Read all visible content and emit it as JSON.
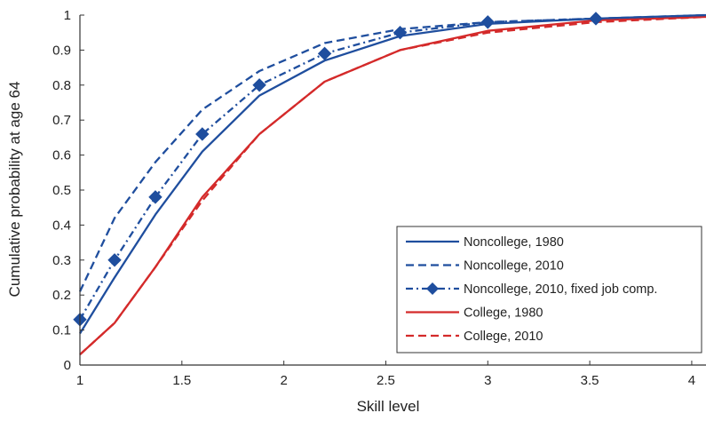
{
  "chart_data": {
    "type": "line",
    "title": "",
    "xlabel": "Skill level",
    "ylabel": "Cumulative probability at age 64",
    "xlim": [
      1,
      4.07
    ],
    "ylim": [
      0,
      1
    ],
    "xticks": [
      1,
      1.5,
      2,
      2.5,
      3,
      3.5,
      4
    ],
    "xtick_labels": [
      "1",
      "1.5",
      "2",
      "2.5",
      "3",
      "3.5",
      "4"
    ],
    "yticks": [
      0,
      0.1,
      0.2,
      0.3,
      0.4,
      0.5,
      0.6,
      0.7,
      0.8,
      0.9,
      1
    ],
    "ytick_labels": [
      "0",
      "0.1",
      "0.2",
      "0.3",
      "0.4",
      "0.5",
      "0.6",
      "0.7",
      "0.8",
      "0.9",
      "1"
    ],
    "grid": false,
    "legend_position": "bottom-right",
    "series": [
      {
        "name": "Noncollege, 1980",
        "color": "#1f4e9e",
        "dash": "solid",
        "marker": "none",
        "x": [
          1,
          1.17,
          1.37,
          1.6,
          1.88,
          2.2,
          2.57,
          3,
          3.53,
          4.07
        ],
        "y": [
          0.09,
          0.25,
          0.43,
          0.61,
          0.77,
          0.87,
          0.94,
          0.975,
          0.99,
          1.0
        ]
      },
      {
        "name": "Noncollege, 2010",
        "color": "#1f4e9e",
        "dash": "dashed",
        "marker": "none",
        "x": [
          1,
          1.17,
          1.37,
          1.6,
          1.88,
          2.2,
          2.57,
          3,
          3.53,
          4.07
        ],
        "y": [
          0.21,
          0.42,
          0.58,
          0.73,
          0.84,
          0.92,
          0.96,
          0.98,
          0.99,
          1.0
        ]
      },
      {
        "name": "Noncollege, 2010, fixed job comp.",
        "color": "#1f4e9e",
        "dash": "dashdot",
        "marker": "diamond",
        "x": [
          1,
          1.17,
          1.37,
          1.6,
          1.88,
          2.2,
          2.57,
          3,
          3.53
        ],
        "y": [
          0.13,
          0.3,
          0.48,
          0.66,
          0.8,
          0.89,
          0.95,
          0.98,
          0.99
        ]
      },
      {
        "name": "College, 1980",
        "color": "#d42a2a",
        "dash": "solid",
        "marker": "none",
        "x": [
          1,
          1.17,
          1.37,
          1.6,
          1.88,
          2.2,
          2.57,
          3,
          3.53,
          4.07
        ],
        "y": [
          0.03,
          0.12,
          0.28,
          0.48,
          0.66,
          0.81,
          0.9,
          0.955,
          0.985,
          0.995
        ]
      },
      {
        "name": "College, 2010",
        "color": "#d42a2a",
        "dash": "dashed",
        "marker": "none",
        "x": [
          1,
          1.17,
          1.37,
          1.6,
          1.88,
          2.2,
          2.57,
          3,
          3.53,
          4.07
        ],
        "y": [
          0.03,
          0.12,
          0.28,
          0.47,
          0.66,
          0.81,
          0.9,
          0.95,
          0.98,
          0.995
        ]
      }
    ]
  }
}
